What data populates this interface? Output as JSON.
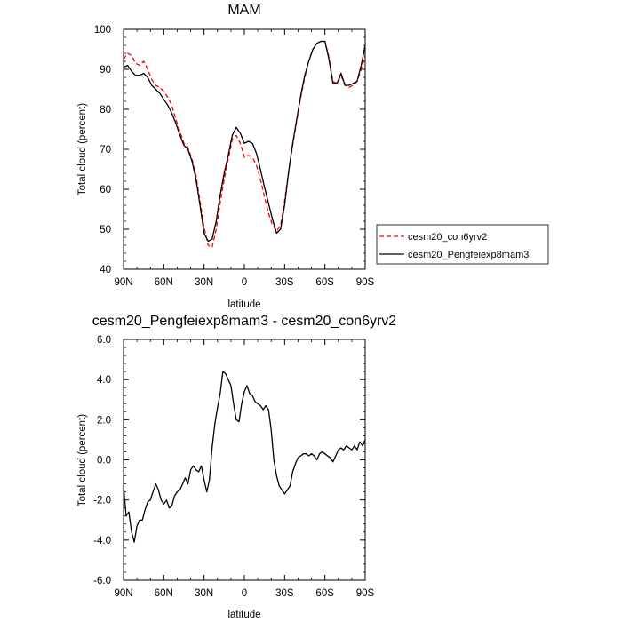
{
  "chart_data": [
    {
      "type": "line",
      "title": "MAM",
      "xlabel": "latitude",
      "ylabel": "Total cloud (percent)",
      "xlim": [
        -90,
        90
      ],
      "ylim": [
        40,
        100
      ],
      "x_ticks": [
        -90,
        -60,
        -30,
        0,
        30,
        60,
        90
      ],
      "x_tick_labels": [
        "90N",
        "60N",
        "30N",
        "0",
        "30S",
        "60S",
        "90S"
      ],
      "y_ticks": [
        40,
        50,
        60,
        70,
        80,
        90,
        100
      ],
      "y_tick_labels": [
        "40",
        "50",
        "60",
        "70",
        "80",
        "90",
        "100"
      ],
      "grid": false,
      "legend": "right",
      "x": [
        -90,
        -87,
        -84,
        -81,
        -78,
        -75,
        -72,
        -69,
        -66,
        -63,
        -60,
        -57,
        -54,
        -51,
        -48,
        -45,
        -42,
        -39,
        -36,
        -33,
        -30,
        -27,
        -24,
        -21,
        -18,
        -15,
        -12,
        -9,
        -6,
        -3,
        0,
        3,
        6,
        9,
        12,
        15,
        18,
        21,
        24,
        27,
        30,
        33,
        36,
        39,
        42,
        45,
        48,
        51,
        54,
        57,
        60,
        63,
        66,
        69,
        72,
        75,
        78,
        81,
        84,
        87,
        90
      ],
      "series": [
        {
          "name": "cesm20_con6yrv2",
          "color": "#ff0000",
          "dash": "dashed",
          "values": [
            92.5,
            94.0,
            93.5,
            91.5,
            91.0,
            92.0,
            90.0,
            87.5,
            86.0,
            85.5,
            84.5,
            83.0,
            81.0,
            77.5,
            74.5,
            71.5,
            70.5,
            67.5,
            63.5,
            57.0,
            50.5,
            46.0,
            45.5,
            50.0,
            56.5,
            62.5,
            67.5,
            72.5,
            73.5,
            71.5,
            68.0,
            68.5,
            68.0,
            66.0,
            62.5,
            58.0,
            54.0,
            51.0,
            49.5,
            51.0,
            57.0,
            64.5,
            71.0,
            77.0,
            83.0,
            88.0,
            92.0,
            95.0,
            96.5,
            97.0,
            97.0,
            93.0,
            87.0,
            86.5,
            88.5,
            86.0,
            85.5,
            86.0,
            87.0,
            90.0,
            93.5
          ]
        },
        {
          "name": "cesm20_Pengfeiexp8mam3",
          "color": "#000000",
          "dash": "solid",
          "values": [
            90.5,
            91.0,
            89.5,
            88.5,
            88.5,
            89.0,
            88.0,
            86.0,
            85.0,
            84.0,
            82.5,
            81.0,
            79.0,
            76.5,
            73.5,
            71.0,
            70.0,
            67.0,
            62.5,
            56.0,
            49.0,
            47.0,
            47.5,
            52.0,
            58.5,
            64.0,
            68.5,
            73.5,
            75.5,
            74.0,
            71.5,
            72.0,
            71.5,
            69.0,
            65.0,
            60.5,
            56.5,
            52.5,
            49.0,
            50.0,
            56.0,
            64.5,
            71.5,
            77.5,
            83.5,
            88.5,
            92.0,
            95.0,
            96.5,
            97.0,
            97.0,
            92.5,
            86.5,
            86.5,
            89.0,
            86.0,
            86.0,
            86.5,
            87.0,
            91.0,
            96.0
          ]
        }
      ]
    },
    {
      "type": "line",
      "title": "cesm20_Pengfeiexp8mam3 - cesm20_con6yrv2",
      "xlabel": "latitude",
      "ylabel": "Total cloud (percent)",
      "xlim": [
        -90,
        90
      ],
      "ylim": [
        -6,
        6
      ],
      "x_ticks": [
        -90,
        -60,
        -30,
        0,
        30,
        60,
        90
      ],
      "x_tick_labels": [
        "90N",
        "60N",
        "30N",
        "0",
        "30S",
        "60S",
        "90S"
      ],
      "y_ticks": [
        -6,
        -4,
        -2,
        0,
        2,
        4,
        6
      ],
      "y_tick_labels": [
        "-6.0",
        "-4.0",
        "-2.0",
        "0.0",
        "2.0",
        "4.0",
        "6.0"
      ],
      "grid": false,
      "x": [
        -90,
        -88,
        -86,
        -84,
        -82,
        -80,
        -78,
        -76,
        -74,
        -72,
        -70,
        -68,
        -66,
        -64,
        -62,
        -60,
        -58,
        -56,
        -54,
        -52,
        -50,
        -48,
        -46,
        -44,
        -42,
        -40,
        -38,
        -36,
        -34,
        -32,
        -30,
        -28,
        -26,
        -24,
        -22,
        -20,
        -18,
        -16,
        -14,
        -12,
        -10,
        -8,
        -6,
        -4,
        -2,
        0,
        2,
        4,
        6,
        8,
        10,
        12,
        14,
        16,
        18,
        20,
        22,
        24,
        26,
        28,
        30,
        32,
        34,
        36,
        38,
        40,
        42,
        44,
        46,
        48,
        50,
        52,
        54,
        56,
        58,
        60,
        62,
        64,
        66,
        68,
        70,
        72,
        74,
        76,
        78,
        80,
        82,
        84,
        86,
        88,
        90
      ],
      "series": [
        {
          "name": "",
          "color": "#000000",
          "dash": "solid",
          "values": [
            -1.3,
            -2.8,
            -2.6,
            -3.6,
            -4.1,
            -3.3,
            -3.0,
            -3.0,
            -2.5,
            -2.1,
            -2.0,
            -1.6,
            -1.2,
            -1.5,
            -2.0,
            -2.2,
            -2.0,
            -2.4,
            -2.3,
            -1.8,
            -1.6,
            -1.5,
            -1.2,
            -0.9,
            -1.2,
            -0.5,
            -0.3,
            -0.5,
            -0.6,
            -0.3,
            -1.0,
            -1.6,
            -1.0,
            0.6,
            1.8,
            2.6,
            3.3,
            4.4,
            4.3,
            4.0,
            3.7,
            2.8,
            2.0,
            1.9,
            2.8,
            3.4,
            3.7,
            3.3,
            3.2,
            2.9,
            2.8,
            2.7,
            2.5,
            2.7,
            2.5,
            1.5,
            0.0,
            -0.8,
            -1.3,
            -1.5,
            -1.7,
            -1.5,
            -1.3,
            -0.6,
            -0.2,
            0.1,
            0.2,
            0.3,
            0.3,
            0.2,
            0.3,
            0.2,
            0.0,
            0.3,
            0.4,
            0.3,
            0.2,
            0.1,
            -0.1,
            0.2,
            0.5,
            0.6,
            0.5,
            0.7,
            0.6,
            0.5,
            0.7,
            0.5,
            0.9,
            0.7,
            1.0
          ]
        }
      ]
    }
  ]
}
